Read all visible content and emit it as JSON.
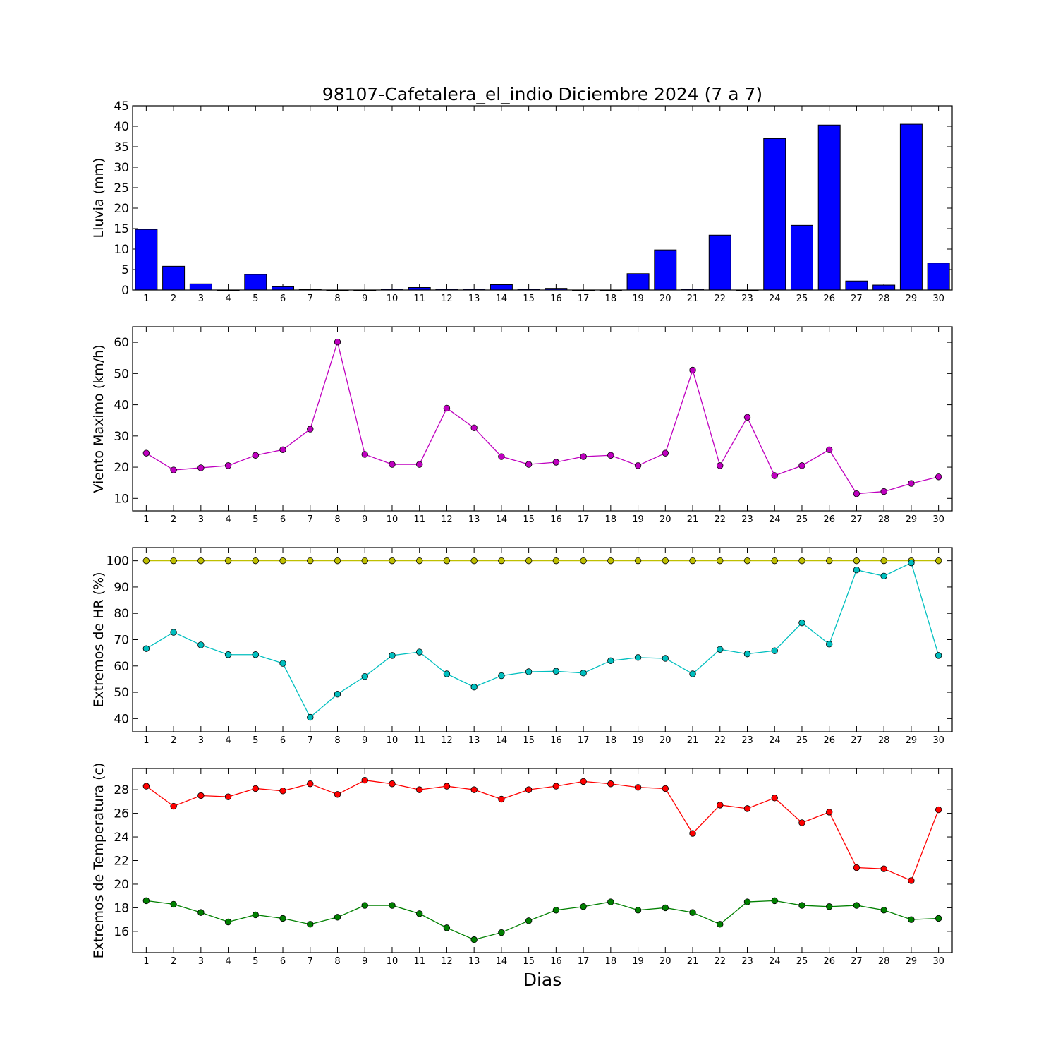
{
  "figure": {
    "title": "98107-Cafetalera_el_indio Diciembre 2024  (7 a 7)",
    "xlabel": "Dias"
  },
  "chart_data": [
    {
      "type": "bar",
      "ylabel": "Lluvia (mm)",
      "categories": [
        "1",
        "2",
        "3",
        "4",
        "5",
        "6",
        "7",
        "8",
        "9",
        "10",
        "11",
        "12",
        "13",
        "14",
        "15",
        "16",
        "17",
        "18",
        "19",
        "20",
        "21",
        "22",
        "23",
        "24",
        "25",
        "26",
        "27",
        "28",
        "29",
        "30"
      ],
      "xlim": [
        0.5,
        30.5
      ],
      "ylim": [
        0,
        45
      ],
      "yticks": [
        0,
        5,
        10,
        15,
        20,
        25,
        30,
        35,
        40,
        45
      ],
      "series": [
        {
          "color": "#0000ff",
          "values": [
            14.8,
            5.8,
            1.5,
            0,
            3.8,
            0.8,
            0.1,
            0,
            0,
            0.2,
            0.6,
            0.2,
            0.2,
            1.3,
            0.2,
            0.4,
            0,
            0,
            4.0,
            9.8,
            0.2,
            13.4,
            0,
            37.0,
            15.8,
            40.3,
            2.2,
            1.2,
            40.5,
            6.6
          ]
        }
      ]
    },
    {
      "type": "line",
      "ylabel": "Viento Maximo (km/h)",
      "x": [
        1,
        2,
        3,
        4,
        5,
        6,
        7,
        8,
        9,
        10,
        11,
        12,
        13,
        14,
        15,
        16,
        17,
        18,
        19,
        20,
        21,
        22,
        23,
        24,
        25,
        26,
        27,
        28,
        29,
        30
      ],
      "xlim": [
        0.5,
        30.5
      ],
      "ylim": [
        6,
        65
      ],
      "yticks": [
        10,
        20,
        30,
        40,
        50,
        60
      ],
      "series": [
        {
          "color": "#bf00bf",
          "values": [
            24.5,
            19.1,
            19.8,
            20.5,
            23.8,
            25.6,
            32.2,
            60.1,
            24.1,
            20.9,
            20.9,
            38.9,
            32.6,
            23.4,
            20.9,
            21.6,
            23.4,
            23.8,
            20.5,
            24.5,
            51.1,
            20.5,
            36.0,
            17.3,
            20.5,
            25.6,
            11.5,
            12.2,
            14.8,
            16.9
          ]
        }
      ]
    },
    {
      "type": "line",
      "ylabel": "Extremos de HR (%)",
      "x": [
        1,
        2,
        3,
        4,
        5,
        6,
        7,
        8,
        9,
        10,
        11,
        12,
        13,
        14,
        15,
        16,
        17,
        18,
        19,
        20,
        21,
        22,
        23,
        24,
        25,
        26,
        27,
        28,
        29,
        30
      ],
      "xlim": [
        0.5,
        30.5
      ],
      "ylim": [
        35,
        105
      ],
      "yticks": [
        40,
        50,
        60,
        70,
        80,
        90,
        100
      ],
      "series": [
        {
          "color": "#bfbf00",
          "values": [
            100,
            100,
            100,
            100,
            100,
            100,
            100,
            100,
            100,
            100,
            100,
            100,
            100,
            100,
            100,
            100,
            100,
            100,
            100,
            100,
            100,
            100,
            100,
            100,
            100,
            100,
            100,
            100,
            100,
            100
          ]
        },
        {
          "color": "#00bfbf",
          "values": [
            66.6,
            72.8,
            68.0,
            64.3,
            64.3,
            61.0,
            40.5,
            49.3,
            56.0,
            64.0,
            65.3,
            57.0,
            52.0,
            56.3,
            57.8,
            58.0,
            57.3,
            62.0,
            63.2,
            62.9,
            57.0,
            66.3,
            64.6,
            65.8,
            76.4,
            68.3,
            96.5,
            94.2,
            99.2,
            64.0
          ]
        }
      ]
    },
    {
      "type": "line",
      "ylabel": "Extremos de Temperatura (c)",
      "x": [
        1,
        2,
        3,
        4,
        5,
        6,
        7,
        8,
        9,
        10,
        11,
        12,
        13,
        14,
        15,
        16,
        17,
        18,
        19,
        20,
        21,
        22,
        23,
        24,
        25,
        26,
        27,
        28,
        29,
        30
      ],
      "xlim": [
        0.5,
        30.5
      ],
      "ylim": [
        14.2,
        29.8
      ],
      "yticks": [
        16,
        18,
        20,
        22,
        24,
        26,
        28
      ],
      "series": [
        {
          "color": "#ff0000",
          "values": [
            28.3,
            26.6,
            27.5,
            27.4,
            28.1,
            27.9,
            28.5,
            27.6,
            28.8,
            28.5,
            28.0,
            28.3,
            28.0,
            27.2,
            28.0,
            28.3,
            28.7,
            28.5,
            28.2,
            28.1,
            24.3,
            26.7,
            26.4,
            27.3,
            25.2,
            26.1,
            21.4,
            21.3,
            20.3,
            26.3
          ]
        },
        {
          "color": "#008000",
          "values": [
            18.6,
            18.3,
            17.6,
            16.8,
            17.4,
            17.1,
            16.6,
            17.2,
            18.2,
            18.2,
            17.5,
            16.3,
            15.3,
            15.9,
            16.9,
            17.8,
            18.1,
            18.5,
            17.8,
            18.0,
            17.6,
            16.6,
            18.5,
            18.6,
            18.2,
            18.1,
            18.2,
            17.8,
            17.0,
            17.1
          ]
        }
      ]
    }
  ]
}
